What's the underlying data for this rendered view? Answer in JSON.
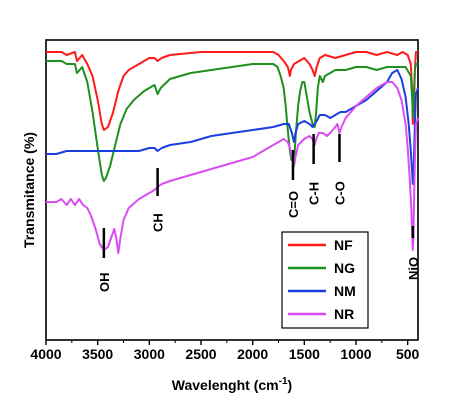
{
  "chart_data": {
    "type": "line",
    "title": "",
    "xlabel": "Wavelenght (cm",
    "xlabel_sup": "-1",
    "xlabel_close": ")",
    "ylabel": "Transmitance (%)",
    "x_reversed": true,
    "xlim": [
      4000,
      400
    ],
    "ylim": [
      0,
      100
    ],
    "xticks": [
      4000,
      3500,
      3000,
      2500,
      2000,
      1500,
      1000,
      500
    ],
    "yticks_shown": false,
    "grid": false,
    "legend_position": "bottom-right",
    "series": [
      {
        "name": "NF",
        "color": "#ff1a1a",
        "points": [
          [
            4000,
            96
          ],
          [
            3850,
            96
          ],
          [
            3800,
            95
          ],
          [
            3720,
            96
          ],
          [
            3700,
            93
          ],
          [
            3650,
            95
          ],
          [
            3600,
            92
          ],
          [
            3550,
            88
          ],
          [
            3500,
            80
          ],
          [
            3460,
            72
          ],
          [
            3440,
            70
          ],
          [
            3400,
            71
          ],
          [
            3350,
            76
          ],
          [
            3300,
            83
          ],
          [
            3250,
            88
          ],
          [
            3200,
            90
          ],
          [
            3100,
            92
          ],
          [
            3000,
            94
          ],
          [
            2950,
            94
          ],
          [
            2920,
            93
          ],
          [
            2880,
            94
          ],
          [
            2800,
            95
          ],
          [
            2500,
            96
          ],
          [
            2200,
            96
          ],
          [
            2000,
            96
          ],
          [
            1900,
            96
          ],
          [
            1800,
            96
          ],
          [
            1750,
            95
          ],
          [
            1700,
            93
          ],
          [
            1660,
            91
          ],
          [
            1640,
            88
          ],
          [
            1630,
            90
          ],
          [
            1600,
            92
          ],
          [
            1550,
            93
          ],
          [
            1500,
            94
          ],
          [
            1450,
            92
          ],
          [
            1420,
            90
          ],
          [
            1400,
            88
          ],
          [
            1380,
            91
          ],
          [
            1350,
            94
          ],
          [
            1300,
            95
          ],
          [
            1200,
            94
          ],
          [
            1100,
            95
          ],
          [
            1000,
            96
          ],
          [
            900,
            96
          ],
          [
            800,
            95
          ],
          [
            700,
            96
          ],
          [
            600,
            95
          ],
          [
            550,
            96
          ],
          [
            500,
            95
          ],
          [
            470,
            92
          ],
          [
            455,
            82
          ],
          [
            450,
            72
          ],
          [
            440,
            78
          ],
          [
            430,
            90
          ],
          [
            420,
            96
          ],
          [
            400,
            96
          ]
        ]
      },
      {
        "name": "NG",
        "color": "#1f8f1f",
        "points": [
          [
            4000,
            93
          ],
          [
            3850,
            93
          ],
          [
            3800,
            92
          ],
          [
            3720,
            92
          ],
          [
            3700,
            89
          ],
          [
            3650,
            91
          ],
          [
            3600,
            86
          ],
          [
            3550,
            76
          ],
          [
            3500,
            64
          ],
          [
            3460,
            55
          ],
          [
            3440,
            53
          ],
          [
            3420,
            54
          ],
          [
            3380,
            58
          ],
          [
            3330,
            65
          ],
          [
            3280,
            72
          ],
          [
            3220,
            77
          ],
          [
            3150,
            80
          ],
          [
            3050,
            83
          ],
          [
            3000,
            84
          ],
          [
            2950,
            85
          ],
          [
            2920,
            82
          ],
          [
            2890,
            84
          ],
          [
            2800,
            87
          ],
          [
            2600,
            89
          ],
          [
            2400,
            90
          ],
          [
            2200,
            91
          ],
          [
            2000,
            92
          ],
          [
            1900,
            92
          ],
          [
            1800,
            92
          ],
          [
            1760,
            91
          ],
          [
            1730,
            88
          ],
          [
            1700,
            84
          ],
          [
            1680,
            78
          ],
          [
            1660,
            70
          ],
          [
            1640,
            63
          ],
          [
            1625,
            60
          ],
          [
            1610,
            60
          ],
          [
            1595,
            62
          ],
          [
            1580,
            70
          ],
          [
            1560,
            78
          ],
          [
            1540,
            83
          ],
          [
            1520,
            86
          ],
          [
            1500,
            86
          ],
          [
            1480,
            82
          ],
          [
            1450,
            76
          ],
          [
            1420,
            72
          ],
          [
            1400,
            71
          ],
          [
            1385,
            76
          ],
          [
            1370,
            84
          ],
          [
            1350,
            88
          ],
          [
            1320,
            86
          ],
          [
            1300,
            88
          ],
          [
            1200,
            90
          ],
          [
            1100,
            90
          ],
          [
            1000,
            91
          ],
          [
            900,
            91
          ],
          [
            800,
            90
          ],
          [
            700,
            91
          ],
          [
            600,
            91
          ],
          [
            520,
            91
          ],
          [
            470,
            88
          ],
          [
            455,
            80
          ],
          [
            450,
            74
          ],
          [
            440,
            82
          ],
          [
            430,
            90
          ],
          [
            420,
            92
          ],
          [
            400,
            92
          ]
        ]
      },
      {
        "name": "NM",
        "color": "#1a3fe0",
        "points": [
          [
            4000,
            62
          ],
          [
            3900,
            62
          ],
          [
            3800,
            63
          ],
          [
            3700,
            63
          ],
          [
            3600,
            63
          ],
          [
            3500,
            63
          ],
          [
            3400,
            63
          ],
          [
            3300,
            63
          ],
          [
            3200,
            63
          ],
          [
            3100,
            63
          ],
          [
            3000,
            64
          ],
          [
            2950,
            64
          ],
          [
            2920,
            63
          ],
          [
            2880,
            64
          ],
          [
            2800,
            65
          ],
          [
            2600,
            66
          ],
          [
            2400,
            68
          ],
          [
            2200,
            69
          ],
          [
            2000,
            70
          ],
          [
            1800,
            71
          ],
          [
            1700,
            72
          ],
          [
            1650,
            72
          ],
          [
            1620,
            69
          ],
          [
            1600,
            66
          ],
          [
            1585,
            69
          ],
          [
            1560,
            72
          ],
          [
            1500,
            73
          ],
          [
            1450,
            72
          ],
          [
            1420,
            71
          ],
          [
            1400,
            72
          ],
          [
            1380,
            73
          ],
          [
            1350,
            75
          ],
          [
            1300,
            75
          ],
          [
            1250,
            74
          ],
          [
            1200,
            75
          ],
          [
            1150,
            76
          ],
          [
            1100,
            76
          ],
          [
            1000,
            78
          ],
          [
            900,
            80
          ],
          [
            800,
            83
          ],
          [
            700,
            86
          ],
          [
            650,
            89
          ],
          [
            600,
            90
          ],
          [
            560,
            87
          ],
          [
            520,
            81
          ],
          [
            490,
            72
          ],
          [
            470,
            63
          ],
          [
            455,
            55
          ],
          [
            450,
            52
          ],
          [
            440,
            60
          ],
          [
            430,
            72
          ],
          [
            420,
            82
          ],
          [
            400,
            84
          ]
        ]
      },
      {
        "name": "NR",
        "color": "#d94df2",
        "points": [
          [
            4000,
            46
          ],
          [
            3900,
            46
          ],
          [
            3850,
            47
          ],
          [
            3800,
            45
          ],
          [
            3760,
            47
          ],
          [
            3720,
            45
          ],
          [
            3680,
            47
          ],
          [
            3640,
            45
          ],
          [
            3600,
            44
          ],
          [
            3560,
            41
          ],
          [
            3520,
            37
          ],
          [
            3480,
            32
          ],
          [
            3440,
            30
          ],
          [
            3400,
            31
          ],
          [
            3370,
            34
          ],
          [
            3340,
            37
          ],
          [
            3320,
            34
          ],
          [
            3300,
            29
          ],
          [
            3280,
            34
          ],
          [
            3250,
            40
          ],
          [
            3200,
            44
          ],
          [
            3100,
            47
          ],
          [
            3000,
            49
          ],
          [
            2950,
            50
          ],
          [
            2920,
            51
          ],
          [
            2880,
            52
          ],
          [
            2800,
            53
          ],
          [
            2600,
            55
          ],
          [
            2400,
            57
          ],
          [
            2200,
            59
          ],
          [
            2000,
            61
          ],
          [
            1900,
            63
          ],
          [
            1800,
            65
          ],
          [
            1750,
            66
          ],
          [
            1700,
            67
          ],
          [
            1660,
            66
          ],
          [
            1640,
            64
          ],
          [
            1620,
            61
          ],
          [
            1600,
            58
          ],
          [
            1585,
            61
          ],
          [
            1560,
            65
          ],
          [
            1500,
            67
          ],
          [
            1450,
            68
          ],
          [
            1420,
            67
          ],
          [
            1400,
            65
          ],
          [
            1385,
            67
          ],
          [
            1360,
            69
          ],
          [
            1320,
            69
          ],
          [
            1280,
            68
          ],
          [
            1250,
            69
          ],
          [
            1200,
            71
          ],
          [
            1180,
            72
          ],
          [
            1160,
            69
          ],
          [
            1140,
            71
          ],
          [
            1100,
            74
          ],
          [
            1000,
            78
          ],
          [
            900,
            81
          ],
          [
            800,
            84
          ],
          [
            700,
            86
          ],
          [
            650,
            86
          ],
          [
            600,
            84
          ],
          [
            560,
            80
          ],
          [
            520,
            72
          ],
          [
            500,
            64
          ],
          [
            480,
            54
          ],
          [
            465,
            44
          ],
          [
            455,
            34
          ],
          [
            450,
            30
          ],
          [
            445,
            34
          ],
          [
            440,
            44
          ],
          [
            430,
            60
          ],
          [
            420,
            72
          ],
          [
            400,
            74
          ]
        ]
      }
    ],
    "annotations": [
      {
        "text": "OH",
        "x": 3440
      },
      {
        "text": "CH",
        "x": 2920
      },
      {
        "text": "C=O",
        "x": 1610
      },
      {
        "text": "C-H",
        "x": 1410
      },
      {
        "text": "C-O",
        "x": 1160
      },
      {
        "text": "NiO",
        "x": 450
      }
    ]
  }
}
